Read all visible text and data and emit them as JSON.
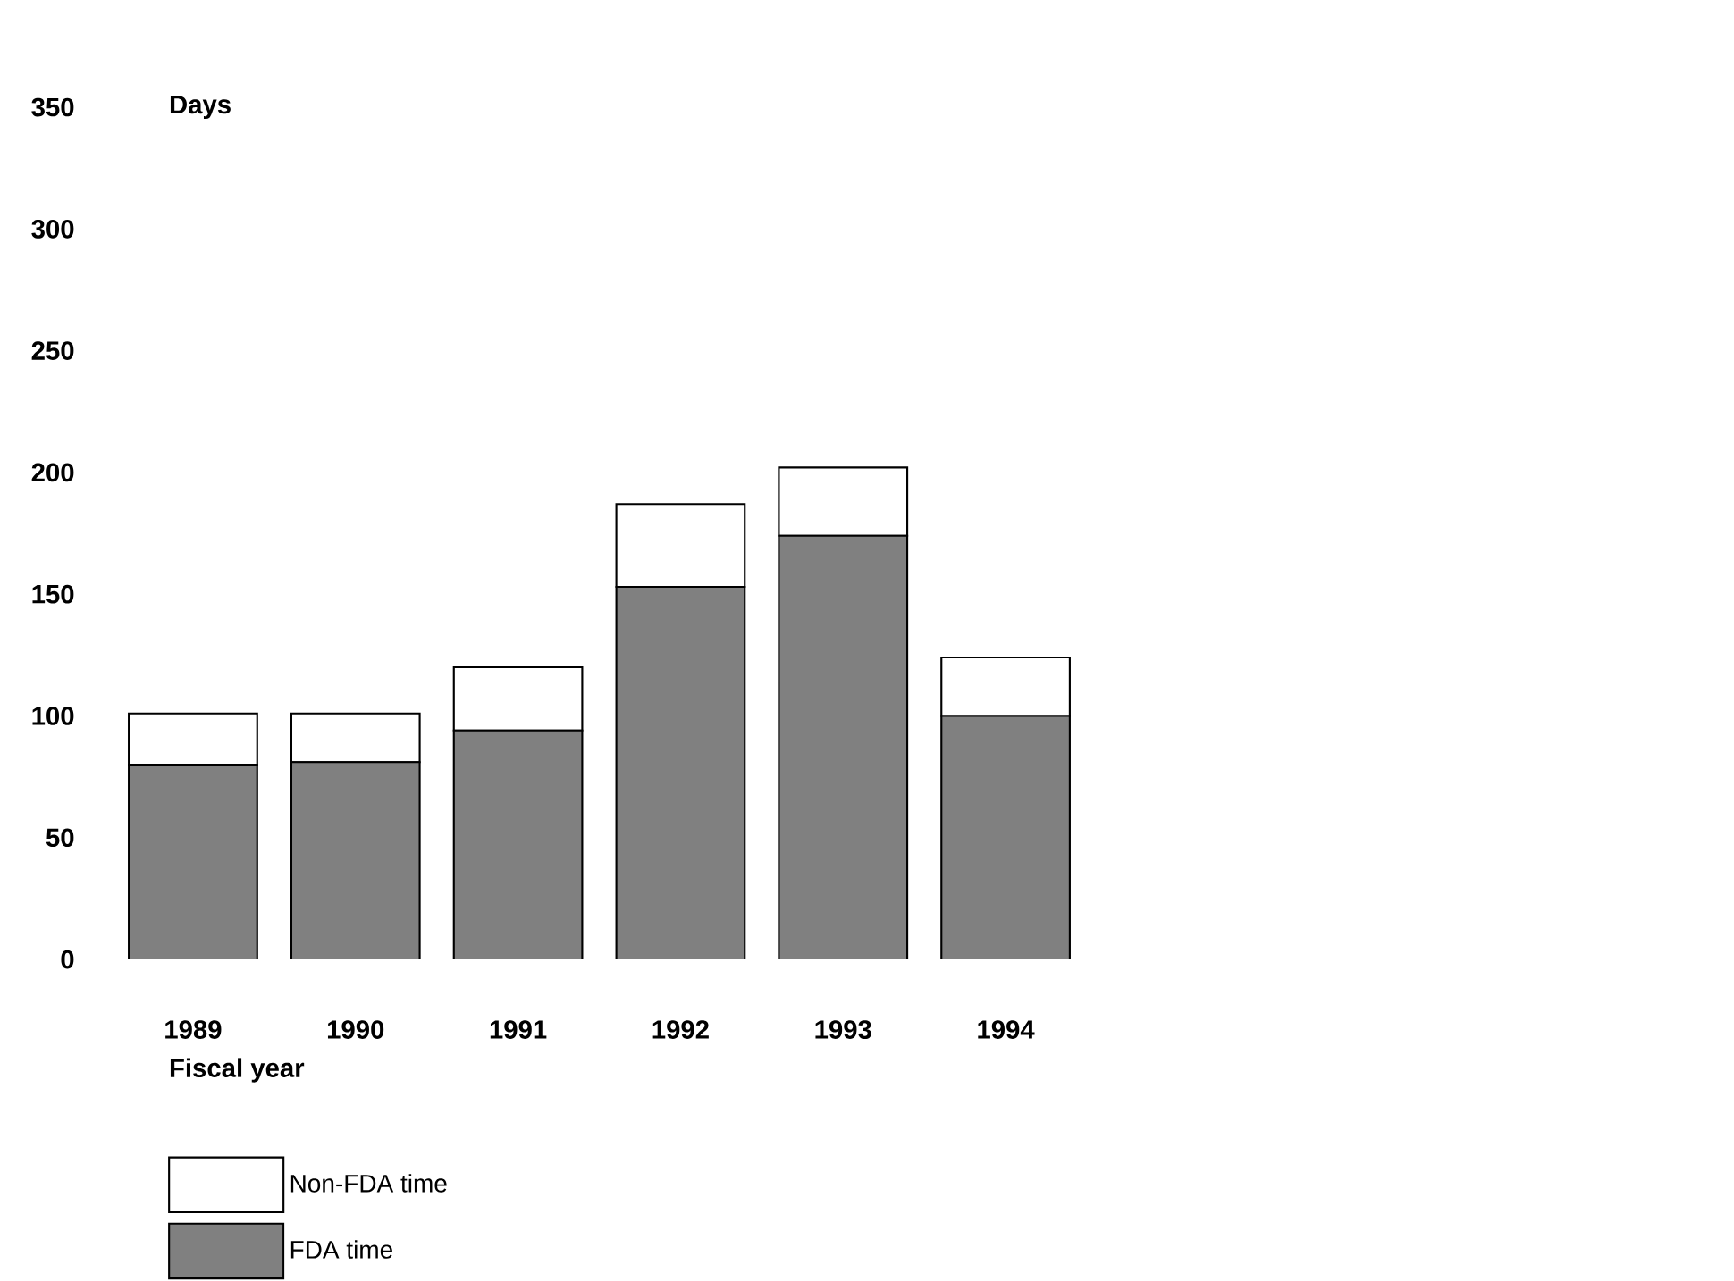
{
  "chart_data": {
    "type": "bar",
    "stacked": true,
    "ylabel": "Days",
    "xlabel": "Fiscal year",
    "categories": [
      "1989",
      "1990",
      "1991",
      "1992",
      "1993",
      "1994"
    ],
    "series": [
      {
        "name": "FDA time",
        "color": "#808080",
        "values": [
          80,
          81,
          94,
          153,
          174,
          100
        ]
      },
      {
        "name": "Non-FDA time",
        "color": "#ffffff",
        "values": [
          21,
          20,
          26,
          34,
          28,
          24
        ]
      }
    ],
    "ylim": [
      0,
      350
    ],
    "yticks": [
      0,
      50,
      100,
      150,
      200,
      250,
      300,
      350
    ],
    "grid": false,
    "legend": "bottom"
  }
}
